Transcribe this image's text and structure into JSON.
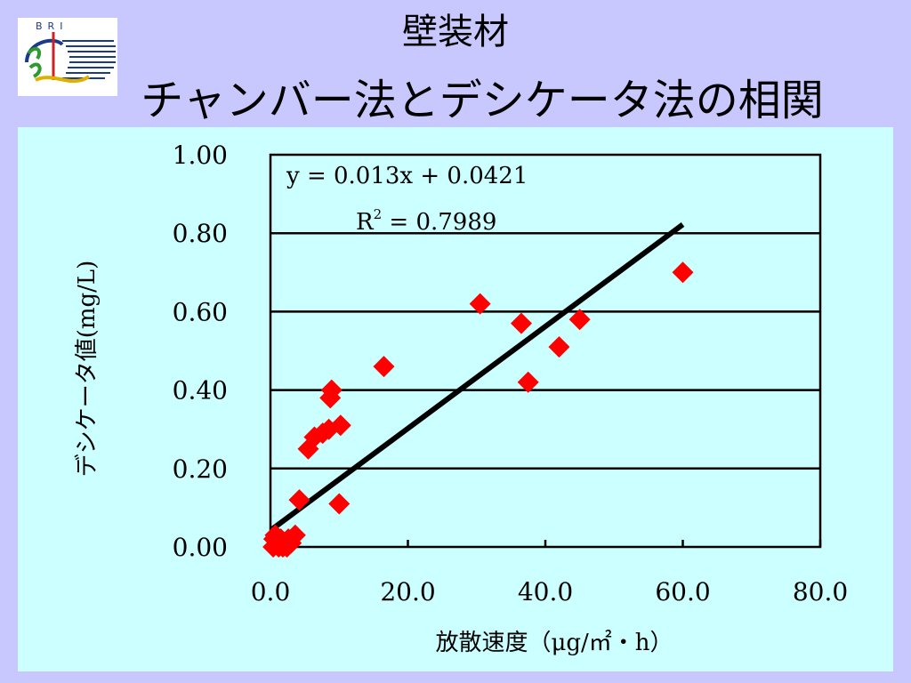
{
  "slide": {
    "title_line1": "壁装材",
    "title_line2": "チャンバー法とデシケータ法の相関",
    "logo_text": "BRI"
  },
  "colors": {
    "background": "#c8c8ff",
    "panel": "#ccffff",
    "marker": "#ff0000",
    "marker_low_cluster": "#ff0000",
    "trendline": "#000000"
  },
  "chart_data": {
    "type": "scatter",
    "xlabel": "放散速度（μg/㎡・h）",
    "ylabel": "デシケータ値(mg/L)",
    "xlim": [
      0,
      80
    ],
    "ylim": [
      0,
      1.0
    ],
    "x_ticks": [
      "0.0",
      "20.0",
      "40.0",
      "60.0",
      "80.0"
    ],
    "y_ticks": [
      "0.00",
      "0.20",
      "0.40",
      "0.60",
      "0.80",
      "1.00"
    ],
    "grid": "horizontal",
    "legend": "none",
    "trendline": {
      "equation": "y = 0.013x + 0.0421",
      "r2": "R2 = 0.7989",
      "r2_prefix": "R",
      "r2_sup": "2",
      "r2_rest": " = 0.7989",
      "slope": 0.013,
      "intercept": 0.0421,
      "x_start": 0.3,
      "x_end": 60.0
    },
    "series": [
      {
        "points": [
          [
            0.4,
            0.0
          ],
          [
            0.5,
            0.02
          ],
          [
            0.7,
            0.03
          ],
          [
            1.0,
            0.01
          ],
          [
            1.2,
            0.0
          ],
          [
            1.5,
            0.02
          ],
          [
            1.8,
            0.0
          ],
          [
            2.0,
            0.01
          ],
          [
            2.4,
            0.0
          ],
          [
            2.6,
            0.02
          ],
          [
            3.0,
            0.01
          ],
          [
            3.6,
            0.03
          ],
          [
            4.2,
            0.12
          ],
          [
            5.5,
            0.25
          ],
          [
            6.4,
            0.28
          ],
          [
            7.6,
            0.29
          ],
          [
            8.5,
            0.3
          ],
          [
            8.7,
            0.38
          ],
          [
            8.9,
            0.4
          ],
          [
            10.0,
            0.11
          ],
          [
            10.2,
            0.31
          ],
          [
            16.5,
            0.46
          ],
          [
            30.5,
            0.62
          ],
          [
            36.5,
            0.57
          ],
          [
            37.5,
            0.42
          ],
          [
            42.0,
            0.51
          ],
          [
            45.0,
            0.58
          ],
          [
            60.0,
            0.7
          ]
        ]
      }
    ]
  }
}
